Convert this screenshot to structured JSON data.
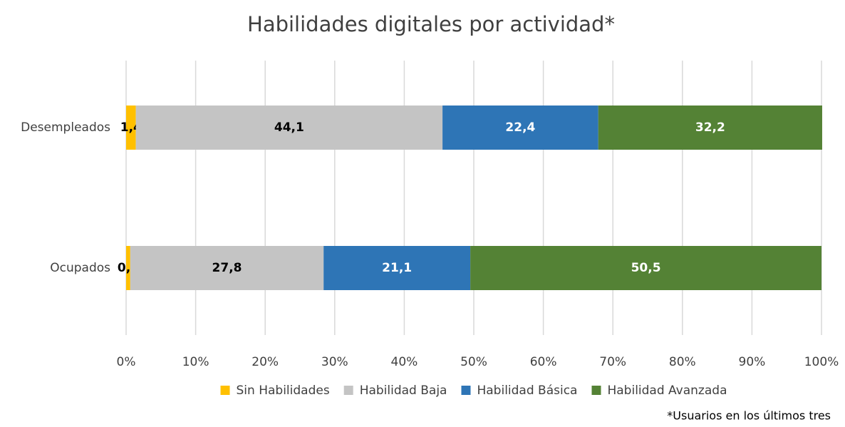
{
  "chart_data": {
    "type": "stacked_barh",
    "title": "Habilidades digitales por actividad*",
    "note": "*Usuarios en los últimos tres",
    "categories": [
      "Desempleados",
      "Ocupados"
    ],
    "series": [
      {
        "name": "Sin Habilidades",
        "color": "#ffc000",
        "label_color": "#000000",
        "values": [
          1.4,
          0.6
        ],
        "value_labels": [
          "1,4",
          "0,6"
        ]
      },
      {
        "name": "Habilidad Baja",
        "color": "#c4c4c4",
        "label_color": "#000000",
        "values": [
          44.1,
          27.8
        ],
        "value_labels": [
          "44,1",
          "27,8"
        ]
      },
      {
        "name": "Habilidad Básica",
        "color": "#2e75b6",
        "label_color": "#ffffff",
        "values": [
          22.4,
          21.1
        ],
        "value_labels": [
          "22,4",
          "21,1"
        ]
      },
      {
        "name": "Habilidad Avanzada",
        "color": "#548235",
        "label_color": "#ffffff",
        "values": [
          32.2,
          50.5
        ],
        "value_labels": [
          "32,2",
          "50,5"
        ]
      }
    ],
    "xlim": [
      0,
      100
    ],
    "xticks": [
      {
        "value": 0,
        "label": "0%"
      },
      {
        "value": 10,
        "label": "10%"
      },
      {
        "value": 20,
        "label": "20%"
      },
      {
        "value": 30,
        "label": "30%"
      },
      {
        "value": 40,
        "label": "40%"
      },
      {
        "value": 50,
        "label": "50%"
      },
      {
        "value": 60,
        "label": "60%"
      },
      {
        "value": 70,
        "label": "70%"
      },
      {
        "value": 80,
        "label": "80%"
      },
      {
        "value": 90,
        "label": "90%"
      },
      {
        "value": 100,
        "label": "100%"
      }
    ],
    "grid": true,
    "legend": "bottom"
  }
}
